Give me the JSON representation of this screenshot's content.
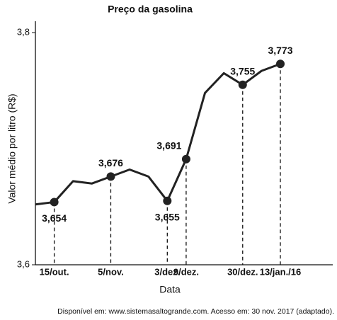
{
  "chart_data": {
    "type": "line",
    "title": "Preço da gasolina",
    "y_label": "Valor médio por litro (R$)",
    "x_label": "Data",
    "source": "Disponível em: www.sistemasaltogrande.com. Acesso em: 30 nov. 2017 (adaptado).",
    "categories": [
      null,
      "15/out.",
      null,
      null,
      "5/nov.",
      null,
      null,
      "3/dez.",
      "9/dez.",
      null,
      null,
      "30/dez.",
      null,
      "13/jan./16"
    ],
    "series": [
      {
        "name": null,
        "color": "#222222",
        "values": [
          3.652,
          3.654,
          3.672,
          3.67,
          3.676,
          3.682,
          3.676,
          3.655,
          3.691,
          3.748,
          3.765,
          3.755,
          3.767,
          3.773
        ],
        "value_labels": [
          null,
          "3,654",
          null,
          null,
          "3,676",
          null,
          null,
          "3,655",
          "3,691",
          null,
          null,
          "3,755",
          null,
          "3,773"
        ]
      }
    ],
    "ylim": [
      3.6,
      3.8
    ],
    "yticks": [
      {
        "value": 3.6,
        "label": "3,6"
      },
      {
        "value": 3.8,
        "label": "3,8"
      }
    ]
  }
}
